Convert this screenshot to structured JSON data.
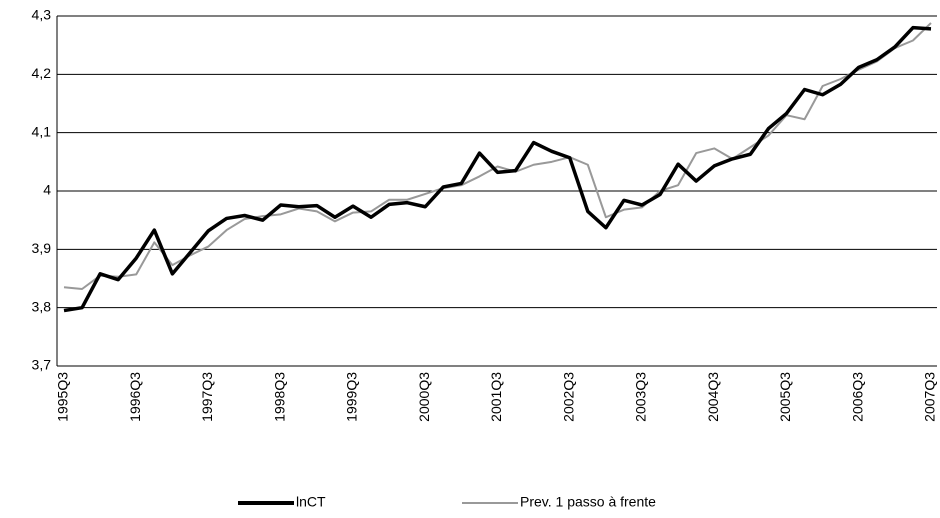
{
  "chart_data": {
    "type": "line",
    "categories": [
      "1995Q3",
      null,
      null,
      null,
      "1996Q3",
      null,
      null,
      null,
      "1997Q3",
      null,
      null,
      null,
      "1998Q3",
      null,
      null,
      null,
      "1999Q3",
      null,
      null,
      null,
      "2000Q3",
      null,
      null,
      null,
      "2001Q3",
      null,
      null,
      null,
      "2002Q3",
      null,
      null,
      null,
      "2003Q3",
      null,
      null,
      null,
      "2004Q3",
      null,
      null,
      null,
      "2005Q3",
      null,
      null,
      null,
      "2006Q3",
      null,
      null,
      null,
      "2007Q3"
    ],
    "series": [
      {
        "name": "lnCT",
        "color": "#000000",
        "values": [
          3.795,
          3.8,
          3.858,
          3.848,
          3.885,
          3.933,
          3.858,
          3.895,
          3.932,
          3.953,
          3.958,
          3.95,
          3.976,
          3.973,
          3.975,
          3.955,
          3.974,
          3.955,
          3.977,
          3.98,
          3.973,
          4.007,
          4.013,
          4.065,
          4.032,
          4.035,
          4.083,
          4.068,
          4.057,
          3.965,
          3.937,
          3.984,
          3.976,
          3.994,
          4.046,
          4.017,
          4.043,
          4.055,
          4.063,
          4.107,
          4.133,
          4.174,
          4.165,
          4.183,
          4.212,
          4.225,
          4.247,
          4.28,
          4.278
        ]
      },
      {
        "name": "Prev. 1 passo à frente",
        "color": "#999999",
        "values": [
          3.835,
          3.832,
          3.855,
          3.853,
          3.857,
          3.912,
          3.873,
          3.89,
          3.905,
          3.933,
          3.952,
          3.957,
          3.96,
          3.97,
          3.965,
          3.948,
          3.963,
          3.965,
          3.985,
          3.985,
          3.995,
          4.005,
          4.01,
          4.025,
          4.042,
          4.033,
          4.045,
          4.05,
          4.058,
          4.045,
          3.955,
          3.968,
          3.972,
          4.0,
          4.01,
          4.065,
          4.073,
          4.055,
          4.075,
          4.095,
          4.13,
          4.123,
          4.18,
          4.192,
          4.208,
          4.222,
          4.245,
          4.258,
          4.288
        ]
      }
    ],
    "ylim": [
      3.7,
      4.3
    ],
    "yticks": [
      {
        "value": 3.7,
        "label": "3,7"
      },
      {
        "value": 3.8,
        "label": "3,8"
      },
      {
        "value": 3.9,
        "label": "3,9"
      },
      4,
      {
        "value": 4.1,
        "label": "4,1"
      },
      {
        "value": 4.2,
        "label": "4,2"
      },
      {
        "value": 4.3,
        "label": "4,3"
      }
    ],
    "grid": true
  }
}
